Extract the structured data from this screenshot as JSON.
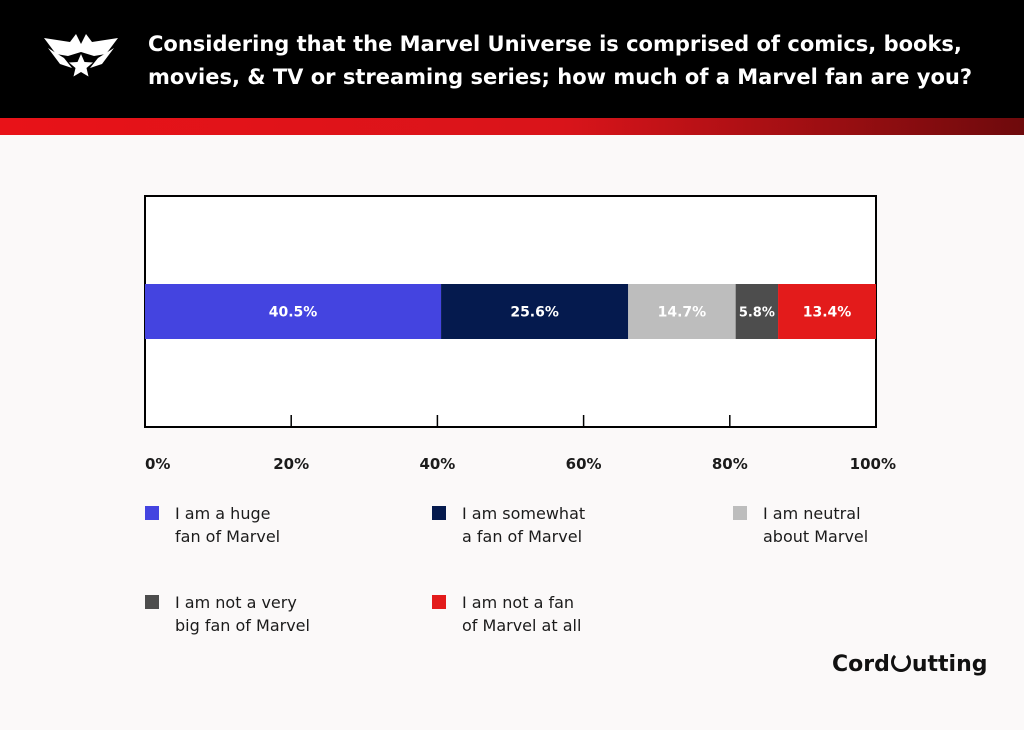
{
  "header": {
    "title": "Considering that the Marvel Universe is comprised of comics, books, movies, & TV or streaming series; how much of a Marvel fan are you?"
  },
  "colors": {
    "header_bg": "#000000",
    "stripe_red": "#e81218",
    "stripe_dark": "#7a0a0c",
    "card_bg": "#fbf9f9"
  },
  "chart_data": {
    "type": "bar",
    "orientation": "horizontal-stacked",
    "xlim": [
      0,
      100
    ],
    "xticks": [
      "0%",
      "20%",
      "40%",
      "60%",
      "80%",
      "100%"
    ],
    "xtick_values": [
      0,
      20,
      40,
      60,
      80,
      100
    ],
    "series": [
      {
        "name": "I am a huge fan of Marvel",
        "value": 40.5,
        "label": "40.5%",
        "color": "#4444e0",
        "text_color": "#ffffff"
      },
      {
        "name": "I am somewhat a fan of Marvel",
        "value": 25.6,
        "label": "25.6%",
        "color": "#051a4e",
        "text_color": "#ffffff"
      },
      {
        "name": "I am neutral about Marvel",
        "value": 14.7,
        "label": "14.7%",
        "color": "#bdbdbd",
        "text_color": "#ffffff"
      },
      {
        "name": "I am not a very big fan of Marvel",
        "value": 5.8,
        "label": "5.8%",
        "color": "#4d4d4d",
        "text_color": "#ffffff"
      },
      {
        "name": "I am not a fan of Marvel at all",
        "value": 13.4,
        "label": "13.4%",
        "color": "#e31b1b",
        "text_color": "#ffffff"
      }
    ],
    "legend_placement": "bottom",
    "grid": false
  },
  "legend": [
    {
      "line1": "I am a huge",
      "line2": "fan of Marvel",
      "color": "#4444e0"
    },
    {
      "line1": "I am somewhat",
      "line2": "a fan of Marvel",
      "color": "#051a4e"
    },
    {
      "line1": "I am neutral",
      "line2": "about Marvel",
      "color": "#bdbdbd"
    },
    {
      "line1": "I am not a very",
      "line2": "big fan of Marvel",
      "color": "#4d4d4d"
    },
    {
      "line1": "I am not a fan",
      "line2": "of Marvel at all",
      "color": "#e31b1b"
    }
  ],
  "brand": {
    "part1": "Cord",
    "part2": "utting"
  },
  "icons": {
    "logo": "marvel-star-emblem-icon"
  }
}
